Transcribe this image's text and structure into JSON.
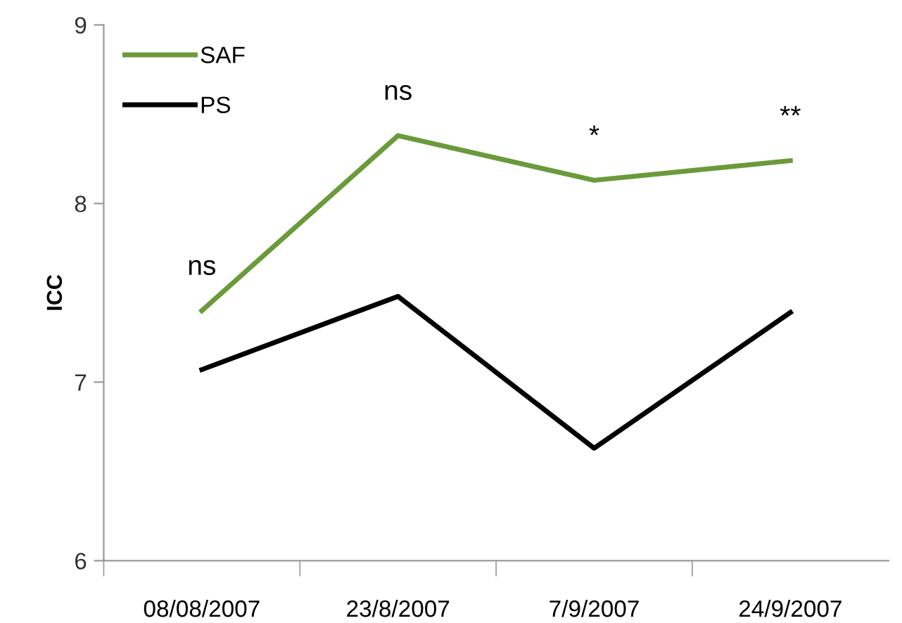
{
  "chart_data": {
    "type": "line",
    "ylabel": "ICC",
    "categories": [
      "08/08/2007",
      "23/8/2007",
      "7/9/2007",
      "24/9/2007"
    ],
    "series": [
      {
        "name": "SAF",
        "color": "#6a9a3a",
        "values": [
          7.4,
          8.38,
          8.13,
          8.24
        ]
      },
      {
        "name": "PS",
        "color": "#000000",
        "values": [
          7.07,
          7.48,
          6.63,
          7.39
        ]
      }
    ],
    "ylim": [
      6,
      9
    ],
    "yticks": [
      6,
      7,
      8,
      9
    ],
    "grid": false,
    "legend": "top left",
    "marker": "none",
    "line_style": "solid",
    "annotations": [
      "ns",
      "ns",
      "*",
      "**"
    ]
  }
}
